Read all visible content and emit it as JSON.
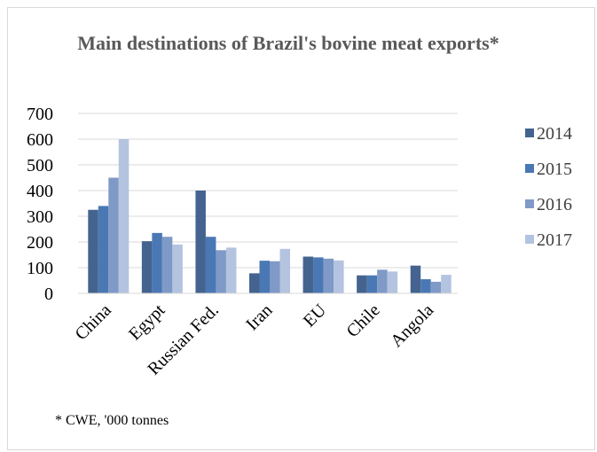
{
  "chart_data": {
    "type": "bar",
    "title": "Main destinations of Brazil's bovine meat exports*",
    "footnote": "* CWE, '000 tonnes",
    "categories": [
      "China",
      "Egypt",
      "Russian Fed.",
      "Iran",
      "EU",
      "Chile",
      "Angola"
    ],
    "series": [
      {
        "name": "2014",
        "color": "#44648f",
        "values": [
          325,
          203,
          400,
          78,
          143,
          70,
          108
        ]
      },
      {
        "name": "2015",
        "color": "#4a78b4",
        "values": [
          340,
          235,
          220,
          127,
          140,
          70,
          55
        ]
      },
      {
        "name": "2016",
        "color": "#7f9ac7",
        "values": [
          450,
          220,
          168,
          125,
          135,
          92,
          45
        ]
      },
      {
        "name": "2017",
        "color": "#b4c3df",
        "values": [
          600,
          190,
          178,
          173,
          128,
          85,
          72
        ]
      }
    ],
    "ylim": [
      0,
      700
    ],
    "yticks": [
      0,
      100,
      200,
      300,
      400,
      500,
      600,
      700
    ],
    "xlabel": "",
    "ylabel": "",
    "grid": true,
    "legend_position": "right"
  }
}
